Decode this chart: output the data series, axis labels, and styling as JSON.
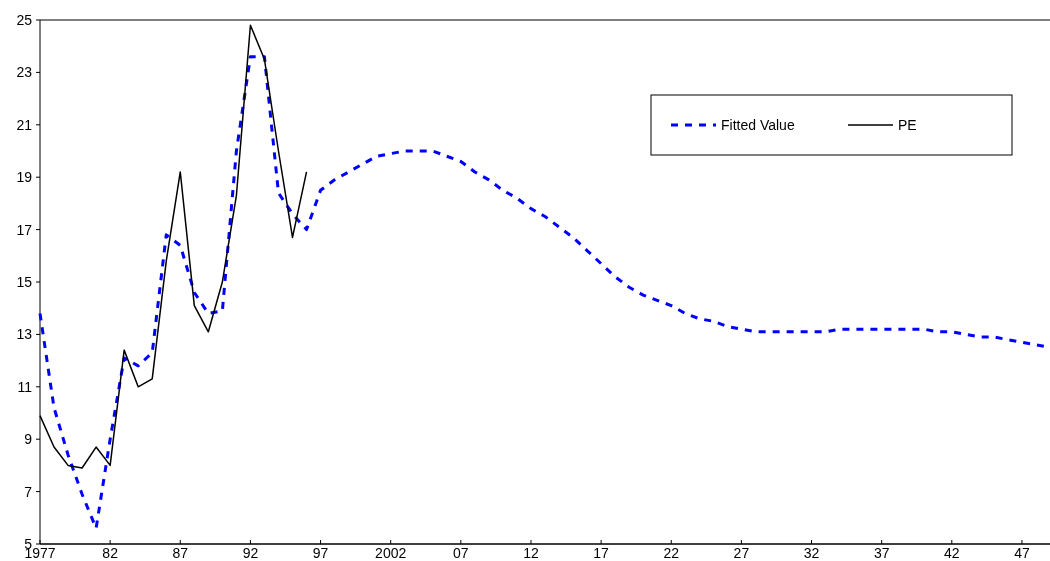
{
  "chart_data": {
    "type": "line",
    "xlim": [
      1977,
      2049
    ],
    "xticks": [
      {
        "value": 1977,
        "label": "1977"
      },
      {
        "value": 1982,
        "label": "82"
      },
      {
        "value": 1987,
        "label": "87"
      },
      {
        "value": 1992,
        "label": "92"
      },
      {
        "value": 1997,
        "label": "97"
      },
      {
        "value": 2002,
        "label": "2002"
      },
      {
        "value": 2007,
        "label": "07"
      },
      {
        "value": 2012,
        "label": "12"
      },
      {
        "value": 2017,
        "label": "17"
      },
      {
        "value": 2022,
        "label": "22"
      },
      {
        "value": 2027,
        "label": "27"
      },
      {
        "value": 2032,
        "label": "32"
      },
      {
        "value": 2037,
        "label": "37"
      },
      {
        "value": 2042,
        "label": "42"
      },
      {
        "value": 2047,
        "label": "47"
      }
    ],
    "ylim": [
      5,
      25
    ],
    "yticks": [
      5,
      7,
      9,
      11,
      13,
      15,
      17,
      19,
      21,
      23,
      25
    ],
    "legend": "top right",
    "grid": false,
    "series": [
      {
        "name": "Fitted Value",
        "color": "#0000ff",
        "line_style": "dashed",
        "x": [
          1977,
          1978,
          1979,
          1980,
          1981,
          1982,
          1983,
          1984,
          1985,
          1986,
          1987,
          1988,
          1989,
          1990,
          1991,
          1992,
          1993,
          1994,
          1995,
          1996,
          1997,
          1998,
          1999,
          2000,
          2001,
          2002,
          2003,
          2004,
          2005,
          2006,
          2007,
          2008,
          2009,
          2010,
          2011,
          2012,
          2013,
          2014,
          2015,
          2016,
          2017,
          2018,
          2019,
          2020,
          2021,
          2022,
          2023,
          2024,
          2025,
          2026,
          2027,
          2028,
          2029,
          2030,
          2031,
          2032,
          2033,
          2034,
          2035,
          2036,
          2037,
          2038,
          2039,
          2040,
          2041,
          2042,
          2043,
          2044,
          2045,
          2046,
          2047,
          2048,
          2049
        ],
        "values": [
          13.8,
          10.2,
          8.4,
          6.9,
          5.6,
          9.0,
          12.1,
          11.8,
          12.3,
          16.8,
          16.4,
          14.6,
          13.8,
          13.9,
          20.0,
          23.6,
          23.6,
          18.4,
          17.6,
          17.0,
          18.5,
          18.9,
          19.2,
          19.5,
          19.8,
          19.9,
          20.0,
          20.0,
          20.0,
          19.8,
          19.6,
          19.2,
          18.9,
          18.5,
          18.2,
          17.8,
          17.5,
          17.1,
          16.7,
          16.2,
          15.7,
          15.2,
          14.8,
          14.5,
          14.3,
          14.1,
          13.8,
          13.6,
          13.5,
          13.3,
          13.2,
          13.1,
          13.1,
          13.1,
          13.1,
          13.1,
          13.1,
          13.2,
          13.2,
          13.2,
          13.2,
          13.2,
          13.2,
          13.2,
          13.1,
          13.1,
          13.0,
          12.9,
          12.9,
          12.8,
          12.7,
          12.6,
          12.5
        ]
      },
      {
        "name": "PE",
        "color": "#000000",
        "line_style": "solid",
        "x": [
          1977,
          1978,
          1979,
          1980,
          1981,
          1982,
          1983,
          1984,
          1985,
          1986,
          1987,
          1988,
          1989,
          1990,
          1991,
          1992,
          1993,
          1994,
          1995,
          1996
        ],
        "values": [
          9.9,
          8.7,
          8.0,
          7.9,
          8.7,
          8.0,
          12.4,
          11.0,
          11.3,
          15.8,
          19.2,
          14.1,
          13.1,
          15.0,
          18.3,
          24.8,
          23.5,
          20.0,
          16.7,
          19.2
        ]
      }
    ]
  }
}
